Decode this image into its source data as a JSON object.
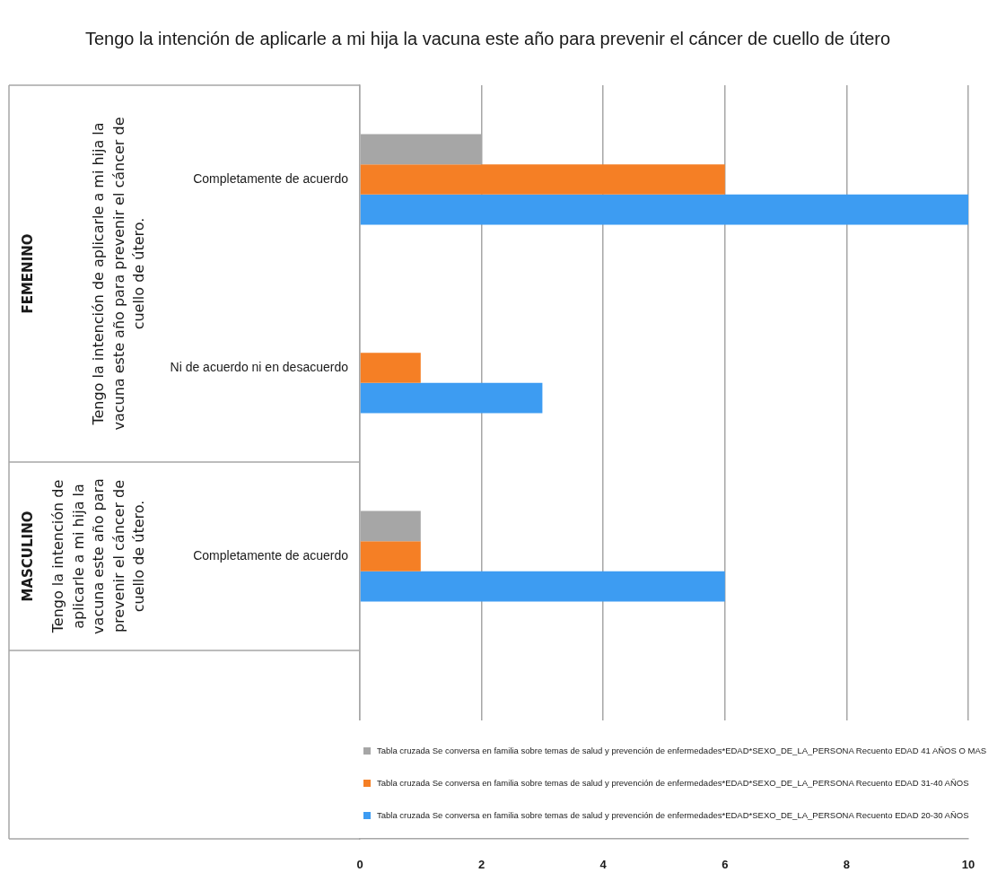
{
  "chart_data": {
    "type": "bar",
    "orientation": "horizontal",
    "title": "Tengo la intención de aplicarle a mi hija la vacuna este año para prevenir el cáncer de cuello de útero",
    "categories": [
      "Completamente de acuerdo",
      "Ni de acuerdo ni en desacuerdo",
      "Completamente de acuerdo",
      null
    ],
    "series": [
      {
        "name": "Tabla cruzada Se conversa en familia sobre temas de salud y prevención de enfermedades*EDAD*SEXO_DE_LA_PERSONA Recuento EDAD 41 AÑOS O MAS",
        "color": "#a6a6a6",
        "values": [
          2,
          null,
          1,
          null
        ]
      },
      {
        "name": "Tabla cruzada Se conversa en familia sobre temas de salud y prevención de enfermedades*EDAD*SEXO_DE_LA_PERSONA Recuento EDAD 31-40 AÑOS",
        "color": "#f57f25",
        "values": [
          6,
          1,
          1,
          null
        ]
      },
      {
        "name": "Tabla cruzada Se conversa en familia sobre temas de salud y prevención de enfermedades*EDAD*SEXO_DE_LA_PERSONA Recuento EDAD 20-30 AÑOS",
        "color": "#3d9cf2",
        "values": [
          10,
          3,
          6,
          null
        ]
      }
    ],
    "xlim": [
      0,
      10
    ],
    "xticks": [
      0,
      2,
      4,
      6,
      8,
      10
    ],
    "grid": "x",
    "legend": "bottom",
    "annotations": [
      "FEMENINO",
      "Tengo la intención de aplicarle a mi hija la vacuna este año para prevenir el cáncer de cuello de útero.",
      "MASCULINO",
      "Tengo la intención de aplicarle a mi hija la vacuna este año para prevenir el cáncer de cuello de útero."
    ]
  }
}
